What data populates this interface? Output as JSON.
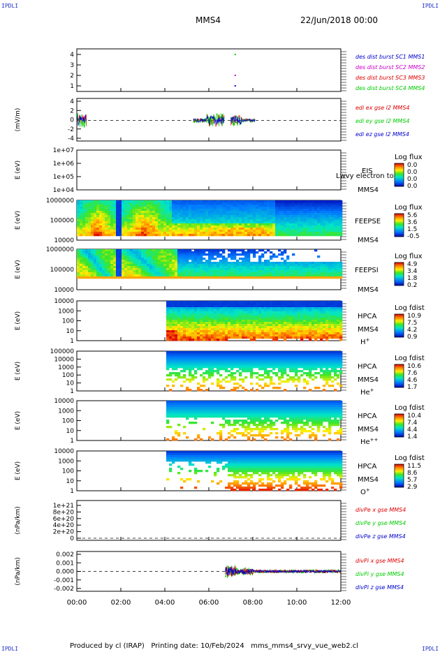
{
  "corner_label": "IPDLI",
  "header": {
    "spacecraft": "MMS4",
    "date": "22/Jun/2018 00:00"
  },
  "footer": "Produced by cl (IRAP)   Printing date: 10/Feb/2024   mms_mms4_srvy_vue_web2.cl",
  "colors": {
    "blue": "#0000cc",
    "magenta": "#cc00cc",
    "red": "#dd0000",
    "green": "#00cc00",
    "black": "#000000"
  },
  "chart_data": {
    "type": "stacked-multi-panel",
    "x_ticks": [
      "00:00",
      "02:00",
      "04:00",
      "06:00",
      "08:00",
      "10:00",
      "12:00"
    ],
    "xlim_hours": [
      0,
      12
    ],
    "panels": [
      {
        "id": "dist",
        "type": "scatter",
        "ylabel": "",
        "yticks": [
          "1",
          "2",
          "3",
          "4"
        ],
        "ylim": [
          0.5,
          4.5
        ],
        "legend": [
          {
            "text": "des dist burst SC1 MMS1",
            "color": "blue"
          },
          {
            "text": "des dist burst SC2 MMS2",
            "color": "magenta"
          },
          {
            "text": "des dist burst SC3 MMS3",
            "color": "red"
          },
          {
            "text": "des dist burst SC4 MMS4",
            "color": "green"
          }
        ],
        "points": [
          {
            "x": 7.2,
            "y": 4,
            "color": "green"
          },
          {
            "x": 7.2,
            "y": 2,
            "color": "magenta"
          },
          {
            "x": 7.2,
            "y": 1,
            "color": "blue"
          }
        ]
      },
      {
        "id": "edi",
        "type": "line",
        "ylabel": "(mV/m)",
        "yticks": [
          "-4",
          "-2",
          "0",
          "2",
          "4"
        ],
        "ylim": [
          -4.5,
          4.5
        ],
        "legend": [
          {
            "text": "edi ex gse l2 MMS4",
            "color": "red"
          },
          {
            "text": "edi ey gse l2 MMS4",
            "color": "green"
          },
          {
            "text": "edi ez gse l2 MMS4",
            "color": "blue"
          }
        ]
      },
      {
        "id": "eis",
        "type": "heatmap",
        "ylabel": "E (eV)",
        "yticks": [
          "1e+04",
          "1e+05",
          "1e+06",
          "1e+07"
        ],
        "right_labels": [
          "EIS",
          "MMS4"
        ],
        "overlay_text": "Lwvy electron to",
        "cbar_title": "Log flux",
        "cbar_ticks": [
          "0.0",
          "0.0",
          "0.0",
          "0.0"
        ]
      },
      {
        "id": "feepse",
        "type": "heatmap",
        "ylabel": "E (eV)",
        "yticks": [
          "10000",
          "100000",
          "1000000"
        ],
        "right_labels": [
          "FEEPSE",
          "MMS4"
        ],
        "cbar_title": "Log flux",
        "cbar_ticks": [
          "5.6",
          "3.6",
          "1.5",
          "-0.5"
        ]
      },
      {
        "id": "feepsi",
        "type": "heatmap",
        "ylabel": "E (eV)",
        "yticks": [
          "10000",
          "100000",
          "1000000"
        ],
        "right_labels": [
          "FEEPSI",
          "MMS4"
        ],
        "cbar_title": "Log flux",
        "cbar_ticks": [
          "4.9",
          "3.4",
          "1.8",
          "0.2"
        ]
      },
      {
        "id": "hpca_h",
        "type": "heatmap",
        "ylabel": "E (eV)",
        "yticks": [
          "1",
          "10",
          "100",
          "1000",
          "10000"
        ],
        "right_labels": [
          "HPCA",
          "MMS4"
        ],
        "species": "H",
        "species_sup": "+",
        "cbar_title": "Log fdist",
        "cbar_ticks": [
          "10.9",
          "7.5",
          "4.2",
          "0.9"
        ]
      },
      {
        "id": "hpca_he",
        "type": "heatmap",
        "ylabel": "E (eV)",
        "yticks": [
          "1",
          "10",
          "100",
          "1000",
          "10000",
          "100000"
        ],
        "right_labels": [
          "HPCA",
          "MMS4"
        ],
        "species": "He",
        "species_sup": "+",
        "cbar_title": "Log fdist",
        "cbar_ticks": [
          "10.6",
          "7.6",
          "4.6",
          "1.7"
        ]
      },
      {
        "id": "hpca_hepp",
        "type": "heatmap",
        "ylabel": "E (eV)",
        "yticks": [
          "1",
          "10",
          "100",
          "1000",
          "10000"
        ],
        "right_labels": [
          "HPCA",
          "MMS4"
        ],
        "species": "He",
        "species_sup": "++",
        "cbar_title": "Log fdist",
        "cbar_ticks": [
          "10.4",
          "7.4",
          "4.4",
          "1.4"
        ]
      },
      {
        "id": "hpca_o",
        "type": "heatmap",
        "ylabel": "E (eV)",
        "yticks": [
          "1",
          "10",
          "100",
          "1000",
          "10000"
        ],
        "right_labels": [
          "HPCA",
          "MMS4"
        ],
        "species": "O",
        "species_sup": "+",
        "cbar_title": "Log fdist",
        "cbar_ticks": [
          "11.5",
          "8.6",
          "5.7",
          "2.9"
        ]
      },
      {
        "id": "divpe",
        "type": "line",
        "ylabel": "(nPa/km)",
        "yticks": [
          "0",
          "2e+20",
          "4e+20",
          "6e+20",
          "8e+20",
          "1e+21"
        ],
        "legend": [
          {
            "text": "divPe x gse MMS4",
            "color": "red"
          },
          {
            "text": "divPe y gse MMS4",
            "color": "green"
          },
          {
            "text": "divPe z gse MMS4",
            "color": "blue"
          }
        ]
      },
      {
        "id": "divpi",
        "type": "line",
        "ylabel": "(nPa/km)",
        "yticks": [
          "-0.002",
          "-0.001",
          "0.000",
          "0.001",
          "0.002"
        ],
        "ylim": [
          -0.0025,
          0.0025
        ],
        "legend": [
          {
            "text": "divPi x gse MMS4",
            "color": "red"
          },
          {
            "text": "divPi y gse MMS4",
            "color": "green"
          },
          {
            "text": "divPi z gse MMS4",
            "color": "blue"
          }
        ]
      }
    ]
  }
}
